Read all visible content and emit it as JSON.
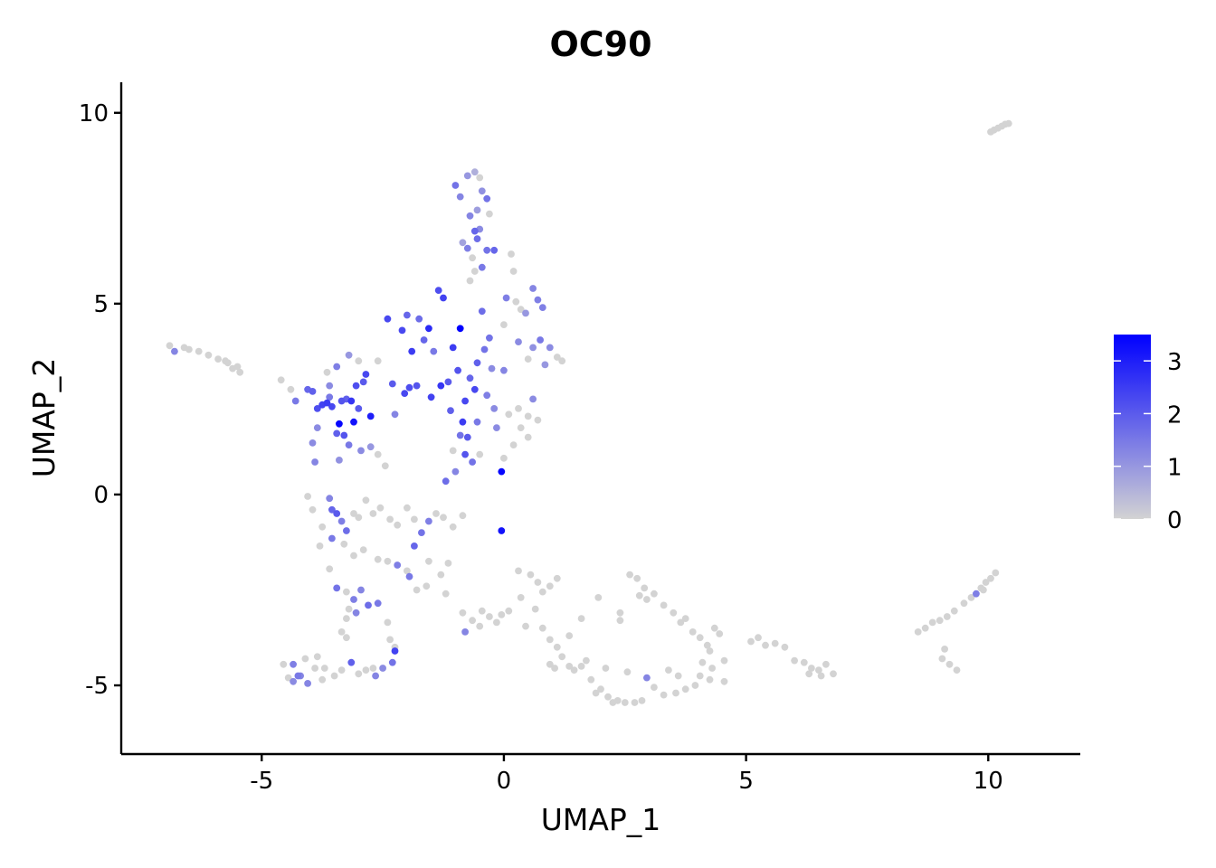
{
  "chart_data": {
    "type": "scatter",
    "title": "OC90",
    "xlabel": "UMAP_1",
    "ylabel": "UMAP_2",
    "xlim": [
      -7.9,
      11.9
    ],
    "ylim": [
      -6.8,
      10.8
    ],
    "xticks": [
      -5,
      0,
      5,
      10
    ],
    "xtick_labels": [
      "-5",
      "0",
      "5",
      "10"
    ],
    "yticks": [
      -5,
      0,
      5,
      10
    ],
    "yticks_labels": [
      "-5",
      "0",
      "5",
      "10"
    ],
    "grid": false,
    "legend": {
      "placement": "right",
      "type": "colorbar",
      "min": 0,
      "max": 3.5,
      "ticks": [
        0,
        1,
        2,
        3
      ],
      "tick_labels": [
        "0",
        "1",
        "2",
        "3"
      ]
    },
    "colors": {
      "low": "#d3d3d3",
      "high": "#0000ff"
    },
    "points": [
      [
        -6.9,
        3.9,
        0
      ],
      [
        -6.8,
        3.75,
        1.3
      ],
      [
        -6.6,
        3.85,
        0
      ],
      [
        -6.5,
        3.8,
        0
      ],
      [
        -6.3,
        3.75,
        0
      ],
      [
        -6.1,
        3.65,
        0
      ],
      [
        -5.9,
        3.55,
        0
      ],
      [
        -5.7,
        3.45,
        0
      ],
      [
        -5.6,
        3.3,
        0
      ],
      [
        -5.5,
        3.35,
        0
      ],
      [
        -5.45,
        3.2,
        0
      ],
      [
        -5.75,
        3.5,
        0
      ],
      [
        -4.6,
        3.0,
        0
      ],
      [
        -4.4,
        2.75,
        0
      ],
      [
        -4.3,
        2.45,
        1.5
      ],
      [
        -4.05,
        2.75,
        1.8
      ],
      [
        -3.95,
        2.7,
        1.9
      ],
      [
        -3.85,
        2.25,
        2.2
      ],
      [
        -3.75,
        2.35,
        2.4
      ],
      [
        -3.65,
        2.4,
        2.5
      ],
      [
        -3.55,
        2.3,
        2.3
      ],
      [
        -3.4,
        1.85,
        3.4
      ],
      [
        -3.35,
        2.45,
        2.1
      ],
      [
        -3.25,
        2.5,
        1.9
      ],
      [
        -3.15,
        2.45,
        2.6
      ],
      [
        -3.1,
        1.9,
        3.2
      ],
      [
        -3.05,
        2.85,
        2.2
      ],
      [
        -3.0,
        2.25,
        2.0
      ],
      [
        -2.9,
        2.95,
        2.0
      ],
      [
        -2.85,
        3.15,
        2.3
      ],
      [
        -2.75,
        2.05,
        3.0
      ],
      [
        -3.45,
        3.35,
        1.4
      ],
      [
        -3.6,
        2.55,
        1.5
      ],
      [
        -3.85,
        1.75,
        1.2
      ],
      [
        -3.95,
        1.35,
        1.2
      ],
      [
        -3.9,
        0.85,
        1.3
      ],
      [
        -3.45,
        1.6,
        1.9
      ],
      [
        -3.3,
        1.55,
        2.1
      ],
      [
        -3.2,
        1.3,
        1.5
      ],
      [
        -3.4,
        0.9,
        1.1
      ],
      [
        -2.95,
        1.15,
        1.2
      ],
      [
        -2.75,
        1.25,
        1.0
      ],
      [
        -3.65,
        3.2,
        0
      ],
      [
        -3.6,
        2.85,
        1.2
      ],
      [
        -3.2,
        3.65,
        1.0
      ],
      [
        -3.0,
        3.5,
        0
      ],
      [
        -2.6,
        1.05,
        0
      ],
      [
        -2.45,
        0.75,
        0
      ],
      [
        -2.3,
        2.9,
        2.0
      ],
      [
        -2.25,
        2.1,
        1.3
      ],
      [
        -2.05,
        2.65,
        2.3
      ],
      [
        -1.9,
        3.75,
        2.5
      ],
      [
        -1.8,
        2.85,
        2.1
      ],
      [
        -1.75,
        4.6,
        1.7
      ],
      [
        -1.65,
        4.05,
        1.8
      ],
      [
        -1.55,
        4.35,
        2.8
      ],
      [
        -1.5,
        2.55,
        2.4
      ],
      [
        -1.45,
        3.75,
        1.5
      ],
      [
        -1.35,
        5.35,
        2.2
      ],
      [
        -1.25,
        5.15,
        2.4
      ],
      [
        -1.15,
        2.95,
        2.0
      ],
      [
        -1.05,
        3.85,
        2.5
      ],
      [
        -0.95,
        3.25,
        2.1
      ],
      [
        -0.9,
        4.35,
        3.5
      ],
      [
        -0.85,
        1.9,
        2.5
      ],
      [
        -0.8,
        2.45,
        2.3
      ],
      [
        -0.75,
        1.5,
        2.0
      ],
      [
        -0.7,
        3.05,
        1.8
      ],
      [
        -0.6,
        2.75,
        2.3
      ],
      [
        -0.55,
        3.45,
        1.9
      ],
      [
        -0.45,
        4.8,
        1.7
      ],
      [
        -0.4,
        3.8,
        1.6
      ],
      [
        -0.35,
        2.6,
        1.4
      ],
      [
        -0.3,
        4.1,
        1.6
      ],
      [
        -0.25,
        3.3,
        1.2
      ],
      [
        -2.4,
        4.6,
        2.3
      ],
      [
        -2.6,
        3.5,
        0
      ],
      [
        -2.1,
        4.3,
        2.3
      ],
      [
        -2.0,
        4.7,
        1.8
      ],
      [
        -1.95,
        2.8,
        2.2
      ],
      [
        -1.3,
        2.85,
        2.6
      ],
      [
        -1.1,
        2.2,
        1.9
      ],
      [
        -0.8,
        1.05,
        2.1
      ],
      [
        -0.65,
        0.85,
        1.6
      ],
      [
        -1.2,
        0.35,
        1.7
      ],
      [
        -1.0,
        0.6,
        1.3
      ],
      [
        -0.05,
        0.6,
        3.4
      ],
      [
        -0.05,
        -0.95,
        3.2
      ],
      [
        -1.05,
        1.15,
        0
      ],
      [
        -0.9,
        1.55,
        1.6
      ],
      [
        -0.55,
        1.9,
        1.5
      ],
      [
        -0.15,
        1.75,
        1.2
      ],
      [
        -0.45,
        5.95,
        1.5
      ],
      [
        -0.7,
        5.6,
        0
      ],
      [
        -0.6,
        5.85,
        0
      ],
      [
        -1.0,
        8.1,
        1.6
      ],
      [
        -0.9,
        7.8,
        1.3
      ],
      [
        -0.75,
        8.35,
        1.0
      ],
      [
        -0.6,
        8.45,
        0.6
      ],
      [
        -0.5,
        8.3,
        0
      ],
      [
        -0.45,
        7.95,
        1.1
      ],
      [
        -0.35,
        7.75,
        1.6
      ],
      [
        -0.55,
        7.45,
        0.9
      ],
      [
        -0.7,
        7.3,
        1.3
      ],
      [
        -0.6,
        6.9,
        1.8
      ],
      [
        -0.5,
        6.95,
        1.2
      ],
      [
        -0.75,
        6.45,
        1.4
      ],
      [
        -0.85,
        6.6,
        0.8
      ],
      [
        -0.65,
        6.2,
        0
      ],
      [
        -0.55,
        6.7,
        1.7
      ],
      [
        -0.35,
        6.4,
        1.6
      ],
      [
        -0.2,
        6.4,
        1.8
      ],
      [
        -0.3,
        7.35,
        0
      ],
      [
        0.0,
        4.45,
        0
      ],
      [
        0.05,
        5.15,
        1.4
      ],
      [
        0.25,
        5.05,
        0
      ],
      [
        0.35,
        4.85,
        0
      ],
      [
        0.45,
        4.75,
        1.0
      ],
      [
        0.6,
        5.4,
        1.3
      ],
      [
        0.7,
        5.1,
        1.4
      ],
      [
        0.8,
        4.9,
        1.4
      ],
      [
        0.3,
        4.0,
        1.2
      ],
      [
        0.5,
        3.55,
        0
      ],
      [
        0.6,
        3.85,
        1.1
      ],
      [
        0.75,
        4.05,
        1.5
      ],
      [
        0.95,
        3.85,
        1.2
      ],
      [
        1.1,
        3.6,
        0
      ],
      [
        1.2,
        3.5,
        0
      ],
      [
        0.85,
        3.4,
        1.0
      ],
      [
        0.6,
        2.5,
        1.2
      ],
      [
        0.5,
        2.05,
        0
      ],
      [
        0.35,
        1.75,
        0
      ],
      [
        0.2,
        1.3,
        0
      ],
      [
        0.1,
        2.1,
        0
      ],
      [
        0.3,
        2.25,
        0
      ],
      [
        0.7,
        1.95,
        0
      ],
      [
        0.0,
        0.95,
        0
      ],
      [
        0.5,
        1.5,
        0
      ],
      [
        0.15,
        6.3,
        0
      ],
      [
        0.2,
        5.85,
        0
      ],
      [
        0.0,
        3.25,
        1.3
      ],
      [
        -0.2,
        2.25,
        1.2
      ],
      [
        -0.5,
        1.05,
        0
      ],
      [
        -4.05,
        -0.05,
        0
      ],
      [
        -3.95,
        -0.4,
        0
      ],
      [
        -3.75,
        -0.85,
        0
      ],
      [
        -3.6,
        -0.1,
        1.3
      ],
      [
        -3.55,
        -0.4,
        1.8
      ],
      [
        -3.45,
        -0.5,
        2.0
      ],
      [
        -3.35,
        -0.7,
        1.4
      ],
      [
        -3.25,
        -0.95,
        1.7
      ],
      [
        -3.1,
        -0.5,
        0
      ],
      [
        -3.0,
        -0.6,
        0
      ],
      [
        -2.85,
        -0.15,
        0
      ],
      [
        -2.7,
        -0.5,
        0
      ],
      [
        -2.55,
        -0.35,
        0
      ],
      [
        -2.35,
        -0.65,
        0
      ],
      [
        -2.2,
        -0.8,
        0
      ],
      [
        -2.0,
        -0.35,
        0
      ],
      [
        -1.85,
        -0.65,
        0
      ],
      [
        -1.7,
        -1.0,
        1.6
      ],
      [
        -1.55,
        -0.7,
        1.4
      ],
      [
        -1.4,
        -0.5,
        0
      ],
      [
        -1.25,
        -0.6,
        0
      ],
      [
        -1.05,
        -0.85,
        0
      ],
      [
        -0.85,
        -0.55,
        0
      ],
      [
        -3.8,
        -1.35,
        0
      ],
      [
        -3.55,
        -1.15,
        1.5
      ],
      [
        -3.3,
        -1.3,
        0
      ],
      [
        -3.1,
        -1.6,
        0
      ],
      [
        -2.9,
        -1.45,
        0
      ],
      [
        -2.6,
        -1.7,
        0
      ],
      [
        -2.4,
        -1.75,
        0
      ],
      [
        -2.2,
        -1.85,
        1.4
      ],
      [
        -2.0,
        -2.0,
        0
      ],
      [
        -1.85,
        -1.35,
        1.8
      ],
      [
        -1.95,
        -2.15,
        1.5
      ],
      [
        -1.55,
        -1.75,
        0
      ],
      [
        -1.3,
        -2.1,
        0
      ],
      [
        -1.15,
        -1.8,
        0
      ],
      [
        -3.6,
        -1.95,
        0
      ],
      [
        -3.45,
        -2.45,
        1.6
      ],
      [
        -3.25,
        -2.55,
        0
      ],
      [
        -3.1,
        -2.75,
        1.4
      ],
      [
        -2.95,
        -2.5,
        1.3
      ],
      [
        -2.8,
        -2.9,
        1.7
      ],
      [
        -2.6,
        -2.85,
        1.5
      ],
      [
        -3.2,
        -3.0,
        0
      ],
      [
        -3.05,
        -3.1,
        1.3
      ],
      [
        -3.25,
        -3.25,
        0
      ],
      [
        -3.35,
        -3.6,
        0
      ],
      [
        -2.4,
        -3.35,
        0
      ],
      [
        -2.35,
        -3.8,
        0
      ],
      [
        -2.25,
        -4.0,
        0
      ],
      [
        -2.3,
        -4.4,
        1.6
      ],
      [
        -2.25,
        -4.1,
        2.4
      ],
      [
        -2.5,
        -4.55,
        1.2
      ],
      [
        -2.65,
        -4.75,
        1.3
      ],
      [
        -2.85,
        -4.6,
        0
      ],
      [
        -3.0,
        -4.7,
        0
      ],
      [
        -3.15,
        -4.4,
        1.9
      ],
      [
        -3.35,
        -4.6,
        0
      ],
      [
        -3.5,
        -4.75,
        0
      ],
      [
        -3.75,
        -4.85,
        0
      ],
      [
        -3.9,
        -4.55,
        0
      ],
      [
        -4.05,
        -4.95,
        1.3
      ],
      [
        -4.25,
        -4.75,
        1.5
      ],
      [
        -4.35,
        -4.9,
        1.2
      ],
      [
        -4.55,
        -4.45,
        0
      ],
      [
        -4.35,
        -4.45,
        1.4
      ],
      [
        -4.1,
        -4.3,
        0
      ],
      [
        -3.85,
        -4.25,
        0
      ],
      [
        -3.7,
        -4.55,
        0
      ],
      [
        -4.2,
        -4.75,
        1.3
      ],
      [
        -4.45,
        -4.8,
        0
      ],
      [
        -3.25,
        -3.75,
        0
      ],
      [
        -2.7,
        -4.55,
        0
      ],
      [
        -1.8,
        -2.5,
        0
      ],
      [
        -1.6,
        -2.4,
        0
      ],
      [
        -1.2,
        -2.6,
        0
      ],
      [
        -0.85,
        -3.1,
        0
      ],
      [
        -0.65,
        -3.3,
        0
      ],
      [
        -0.45,
        -3.05,
        0
      ],
      [
        -0.3,
        -3.2,
        0
      ],
      [
        -0.15,
        -3.35,
        0
      ],
      [
        -0.05,
        -3.15,
        0
      ],
      [
        0.1,
        -3.05,
        0
      ],
      [
        -0.8,
        -3.6,
        1.3
      ],
      [
        -0.5,
        -3.45,
        0
      ],
      [
        0.3,
        -2.0,
        0
      ],
      [
        0.55,
        -2.1,
        0
      ],
      [
        0.7,
        -2.3,
        0
      ],
      [
        0.8,
        -2.55,
        0
      ],
      [
        0.95,
        -2.4,
        0
      ],
      [
        1.1,
        -2.2,
        0
      ],
      [
        0.35,
        -2.7,
        0
      ],
      [
        0.65,
        -3.0,
        0
      ],
      [
        0.45,
        -3.45,
        0
      ],
      [
        0.8,
        -3.5,
        0
      ],
      [
        0.95,
        -3.8,
        0
      ],
      [
        1.1,
        -4.0,
        0
      ],
      [
        1.2,
        -4.25,
        0
      ],
      [
        1.35,
        -4.5,
        0
      ],
      [
        0.95,
        -4.45,
        0
      ],
      [
        1.05,
        -4.55,
        0
      ],
      [
        1.45,
        -4.6,
        0
      ],
      [
        1.6,
        -4.5,
        0
      ],
      [
        1.35,
        -3.7,
        0
      ],
      [
        1.8,
        -4.85,
        0
      ],
      [
        2.0,
        -5.1,
        0
      ],
      [
        2.15,
        -5.3,
        0
      ],
      [
        2.35,
        -5.4,
        0
      ],
      [
        2.5,
        -5.45,
        0
      ],
      [
        2.7,
        -5.45,
        0
      ],
      [
        2.85,
        -5.4,
        0
      ],
      [
        2.25,
        -5.45,
        0
      ],
      [
        1.9,
        -5.2,
        0
      ],
      [
        1.6,
        -3.25,
        0
      ],
      [
        1.95,
        -2.7,
        0
      ],
      [
        2.4,
        -3.3,
        0
      ],
      [
        2.6,
        -2.1,
        0
      ],
      [
        2.75,
        -2.2,
        0
      ],
      [
        2.9,
        -2.45,
        0
      ],
      [
        2.95,
        -2.75,
        0
      ],
      [
        3.1,
        -2.6,
        0
      ],
      [
        2.8,
        -2.65,
        0
      ],
      [
        3.3,
        -2.9,
        0
      ],
      [
        3.5,
        -3.1,
        0
      ],
      [
        3.75,
        -3.25,
        0
      ],
      [
        3.9,
        -3.6,
        0
      ],
      [
        4.05,
        -3.75,
        0
      ],
      [
        4.2,
        -3.95,
        0
      ],
      [
        4.35,
        -3.5,
        0
      ],
      [
        4.45,
        -3.65,
        0
      ],
      [
        4.25,
        -4.1,
        0
      ],
      [
        4.1,
        -4.4,
        0
      ],
      [
        4.3,
        -4.55,
        0
      ],
      [
        4.05,
        -4.75,
        0
      ],
      [
        4.25,
        -4.85,
        0
      ],
      [
        3.95,
        -5.0,
        0
      ],
      [
        3.75,
        -5.1,
        0
      ],
      [
        3.55,
        -5.2,
        0
      ],
      [
        3.3,
        -5.25,
        0
      ],
      [
        3.1,
        -5.05,
        0
      ],
      [
        2.95,
        -4.8,
        1.3
      ],
      [
        3.4,
        -4.6,
        0
      ],
      [
        3.6,
        -4.75,
        0
      ],
      [
        4.55,
        -4.35,
        0
      ],
      [
        4.55,
        -4.9,
        0
      ],
      [
        2.55,
        -4.65,
        0
      ],
      [
        2.1,
        -4.55,
        0
      ],
      [
        2.4,
        -3.1,
        0
      ],
      [
        1.7,
        -4.35,
        0
      ],
      [
        3.65,
        -3.35,
        0
      ],
      [
        5.1,
        -3.85,
        0
      ],
      [
        5.25,
        -3.75,
        0
      ],
      [
        5.4,
        -3.95,
        0
      ],
      [
        5.6,
        -3.9,
        0
      ],
      [
        5.8,
        -4.0,
        0
      ],
      [
        6.0,
        -4.35,
        0
      ],
      [
        6.2,
        -4.4,
        0
      ],
      [
        6.35,
        -4.55,
        0
      ],
      [
        6.5,
        -4.6,
        0
      ],
      [
        6.65,
        -4.45,
        0
      ],
      [
        6.8,
        -4.7,
        0
      ],
      [
        6.55,
        -4.75,
        0
      ],
      [
        6.3,
        -4.7,
        0
      ],
      [
        8.55,
        -3.6,
        0
      ],
      [
        8.7,
        -3.5,
        0
      ],
      [
        8.85,
        -3.35,
        0
      ],
      [
        9.0,
        -3.3,
        0
      ],
      [
        9.15,
        -3.2,
        0
      ],
      [
        9.3,
        -3.05,
        0
      ],
      [
        9.5,
        -2.85,
        0
      ],
      [
        9.65,
        -2.7,
        0
      ],
      [
        9.75,
        -2.6,
        1.4
      ],
      [
        9.85,
        -2.45,
        0
      ],
      [
        9.95,
        -2.3,
        0
      ],
      [
        10.05,
        -2.2,
        0
      ],
      [
        10.15,
        -2.05,
        0
      ],
      [
        9.9,
        -2.5,
        0
      ],
      [
        9.1,
        -4.05,
        0
      ],
      [
        9.05,
        -4.3,
        0
      ],
      [
        9.2,
        -4.45,
        0
      ],
      [
        9.35,
        -4.6,
        0
      ],
      [
        10.05,
        9.5,
        0
      ],
      [
        10.12,
        9.55,
        0
      ],
      [
        10.2,
        9.6,
        0
      ],
      [
        10.28,
        9.65,
        0
      ],
      [
        10.35,
        9.7,
        0
      ],
      [
        10.42,
        9.72,
        0
      ]
    ]
  }
}
